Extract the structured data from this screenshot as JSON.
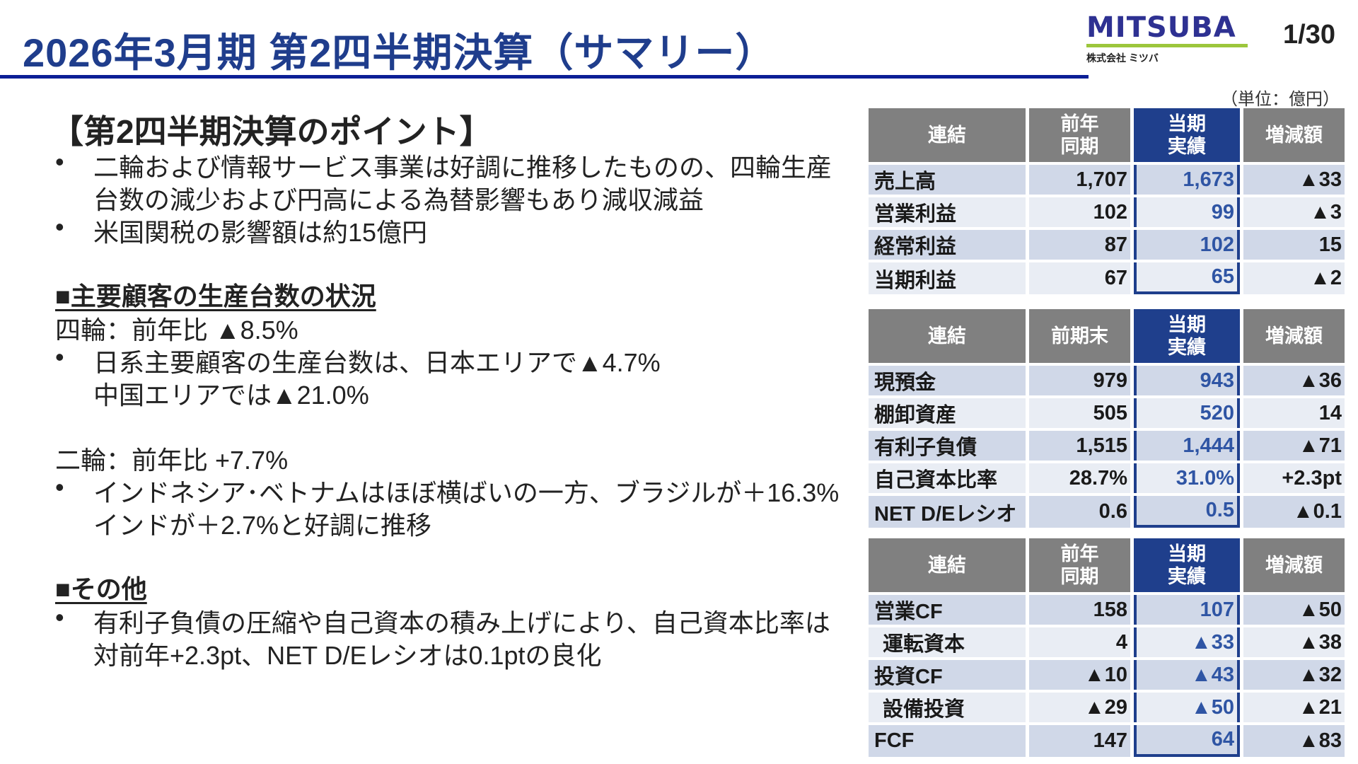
{
  "header": {
    "title": "2026年3月期 第2四半期決算（サマリー）",
    "logo_text": "MITSUBA",
    "logo_sub": "株式会社 ミツバ",
    "page": "1/30"
  },
  "colors": {
    "title": "#1f3d8c",
    "rule": "#0b1f96",
    "header_gray": "#808080",
    "highlight": "#1f3f8c",
    "highlight_text": "#2f55a4",
    "logo_green": "#9cc63c"
  },
  "left": {
    "points_heading": "【第2四半期決算のポイント】",
    "points": [
      [
        "二輪および情報サービス事業は好調に推移したものの、四輪生産",
        "台数の減少および円高による為替影響もあり減収減益"
      ],
      [
        "米国関税の影響額は約15億円"
      ]
    ],
    "customer_heading": "■主要顧客の生産台数の状況",
    "four_wheel": "四輪：前年比 ▲8.5%",
    "four_wheel_bullet": [
      "日系主要顧客の生産台数は、日本エリアで▲4.7%",
      "中国エリアでは▲21.0%"
    ],
    "two_wheel": "二輪：前年比 +7.7%",
    "two_wheel_bullet": [
      "インドネシア･ベトナムはほぼ横ばいの一方、ブラジルが＋16.3%",
      "インドが＋2.7%と好調に推移"
    ],
    "other_heading": "■その他",
    "other_bullet": [
      "有利子負債の圧縮や自己資本の積み上げにより、自己資本比率は",
      "対前年+2.3pt、NET D/Eレシオは0.1ptの良化"
    ]
  },
  "unit": "（単位：億円）",
  "tables": [
    {
      "headers": [
        "連結",
        "前年\n同期",
        "当期\n実績",
        "増減額"
      ],
      "rows": [
        [
          "売上高",
          "1,707",
          "1,673",
          "▲33"
        ],
        [
          "営業利益",
          "102",
          "99",
          "▲3"
        ],
        [
          "経常利益",
          "87",
          "102",
          "15"
        ],
        [
          "当期利益",
          "67",
          "65",
          "▲2"
        ]
      ]
    },
    {
      "headers": [
        "連結",
        "前期末",
        "当期\n実績",
        "増減額"
      ],
      "rows": [
        [
          "現預金",
          "979",
          "943",
          "▲36"
        ],
        [
          "棚卸資産",
          "505",
          "520",
          "14"
        ],
        [
          "有利子負債",
          "1,515",
          "1,444",
          "▲71"
        ],
        [
          "自己資本比率",
          "28.7%",
          "31.0%",
          "+2.3pt"
        ],
        [
          "NET D/Eレシオ",
          "0.6",
          "0.5",
          "▲0.1"
        ]
      ]
    },
    {
      "headers": [
        "連結",
        "前年\n同期",
        "当期\n実績",
        "増減額"
      ],
      "rows": [
        [
          "営業CF",
          "158",
          "107",
          "▲50"
        ],
        [
          "運転資本",
          "4",
          "▲33",
          "▲38"
        ],
        [
          "投資CF",
          "▲10",
          "▲43",
          "▲32"
        ],
        [
          "設備投資",
          "▲29",
          "▲50",
          "▲21"
        ],
        [
          "FCF",
          "147",
          "64",
          "▲83"
        ]
      ]
    }
  ]
}
